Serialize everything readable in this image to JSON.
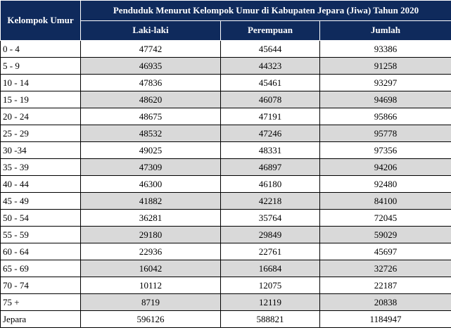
{
  "header": {
    "age_group": "Kelompok Umur",
    "title": "Penduduk Menurut Kelompok Umur di Kabupaten Jepara (Jiwa) Tahun 2020",
    "male": "Laki-laki",
    "female": "Perempuan",
    "total": "Jumlah"
  },
  "rows": [
    {
      "age": "0 - 4",
      "male": "47742",
      "female": "45644",
      "total": "93386"
    },
    {
      "age": "5 - 9",
      "male": "46935",
      "female": "44323",
      "total": "91258"
    },
    {
      "age": "10 - 14",
      "male": "47836",
      "female": "45461",
      "total": "93297"
    },
    {
      "age": "15 - 19",
      "male": "48620",
      "female": "46078",
      "total": "94698"
    },
    {
      "age": "20 - 24",
      "male": "48675",
      "female": "47191",
      "total": "95866"
    },
    {
      "age": "25 - 29",
      "male": "48532",
      "female": "47246",
      "total": "95778"
    },
    {
      "age": "30 -34",
      "male": "49025",
      "female": "48331",
      "total": "97356"
    },
    {
      "age": "35 - 39",
      "male": "47309",
      "female": "46897",
      "total": "94206"
    },
    {
      "age": "40 - 44",
      "male": "46300",
      "female": "46180",
      "total": "92480"
    },
    {
      "age": "45 - 49",
      "male": "41882",
      "female": "42218",
      "total": "84100"
    },
    {
      "age": "50 - 54",
      "male": "36281",
      "female": "35764",
      "total": "72045"
    },
    {
      "age": "55 - 59",
      "male": "29180",
      "female": "29849",
      "total": "59029"
    },
    {
      "age": "60 - 64",
      "male": "22936",
      "female": "22761",
      "total": "45697"
    },
    {
      "age": "65 - 69",
      "male": "16042",
      "female": "16684",
      "total": "32726"
    },
    {
      "age": "70 - 74",
      "male": "10112",
      "female": "12075",
      "total": "22187"
    },
    {
      "age": "75 +",
      "male": "8719",
      "female": "12119",
      "total": "20838"
    },
    {
      "age": "Jepara",
      "male": "596126",
      "female": "588821",
      "total": "1184947"
    }
  ],
  "colors": {
    "header_bg": "#0f2a5c",
    "alt_row_bg": "#d9d9d9"
  }
}
